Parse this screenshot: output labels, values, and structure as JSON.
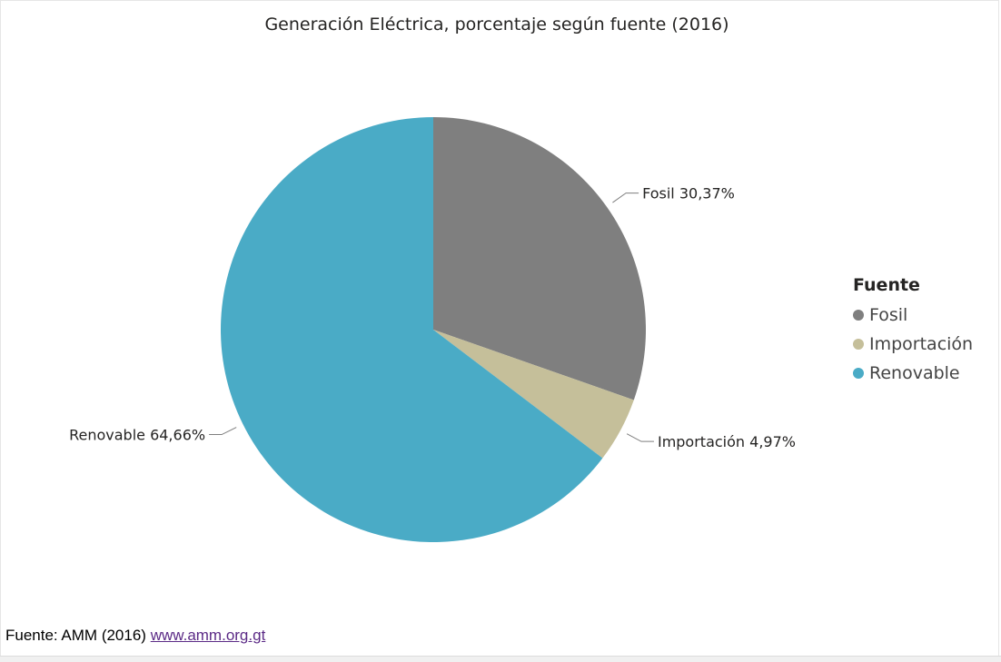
{
  "chart_data": {
    "type": "pie",
    "title": "Generación Eléctrica, porcentaje según fuente (2016)",
    "legend_title": "Fuente",
    "legend_position": "right",
    "slices": [
      {
        "label": "Fosil",
        "value": 30.37,
        "value_label": "30,37%",
        "color": "#7f7f7f"
      },
      {
        "label": "Importación",
        "value": 4.97,
        "value_label": "4,97%",
        "color": "#c5bf9a"
      },
      {
        "label": "Renovable",
        "value": 64.66,
        "value_label": "64,66%",
        "color": "#4aabc6"
      }
    ]
  },
  "footer": {
    "source_prefix": "Fuente: AMM (2016)",
    "source_link": "www.amm.org.gt"
  }
}
